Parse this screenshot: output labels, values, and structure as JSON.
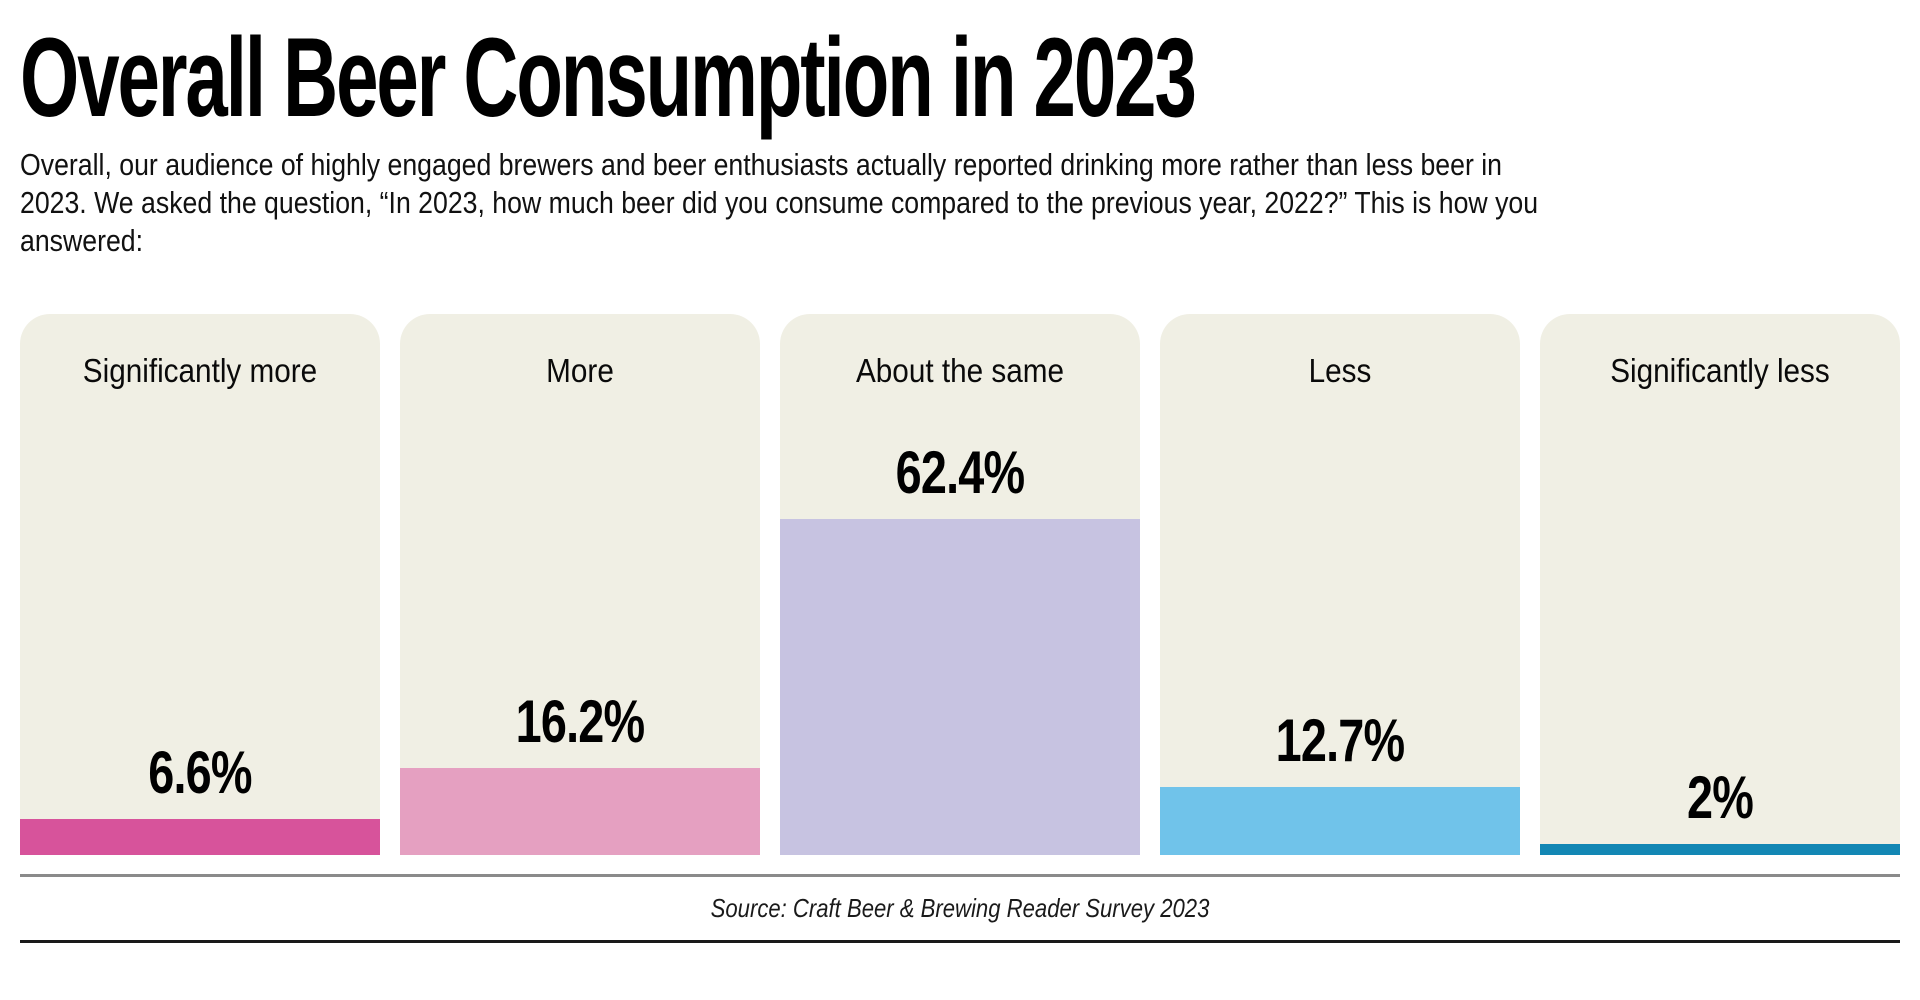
{
  "header": {
    "title": "Overall Beer Consumption in 2023",
    "description": "Overall, our audience of highly engaged brewers and beer enthusiasts actually reported drinking more rather than less beer in 2023. We asked the question, “In 2023, how much beer did you consume compared to the previous year, 2022?” This is how you answered:"
  },
  "chart_data": {
    "type": "bar",
    "title": "Overall Beer Consumption in 2023",
    "orientation": "vertical",
    "categories": [
      "Significantly more",
      "More",
      "About the same",
      "Less",
      "Significantly less"
    ],
    "values": [
      6.6,
      16.2,
      62.4,
      12.7,
      2
    ],
    "value_labels": [
      "6.6%",
      "16.2%",
      "62.4%",
      "12.7%",
      "2%"
    ],
    "bar_colors": [
      "#d7539b",
      "#e5a0c1",
      "#c7c3e1",
      "#70c3ea",
      "#1387b4"
    ],
    "panel_bg": "#f0efe4",
    "ylim": [
      0,
      65
    ],
    "grid": false,
    "legend": "none",
    "xlabel": "",
    "ylabel": ""
  },
  "footer": {
    "source": "Source: Craft Beer & Brewing Reader Survey 2023"
  },
  "colors": {
    "page_background": "#ffffff",
    "card_background": "#f0efe4",
    "text": "#000000",
    "rule_top": "#8a8a8a",
    "rule_bottom": "#1a1a1a"
  }
}
